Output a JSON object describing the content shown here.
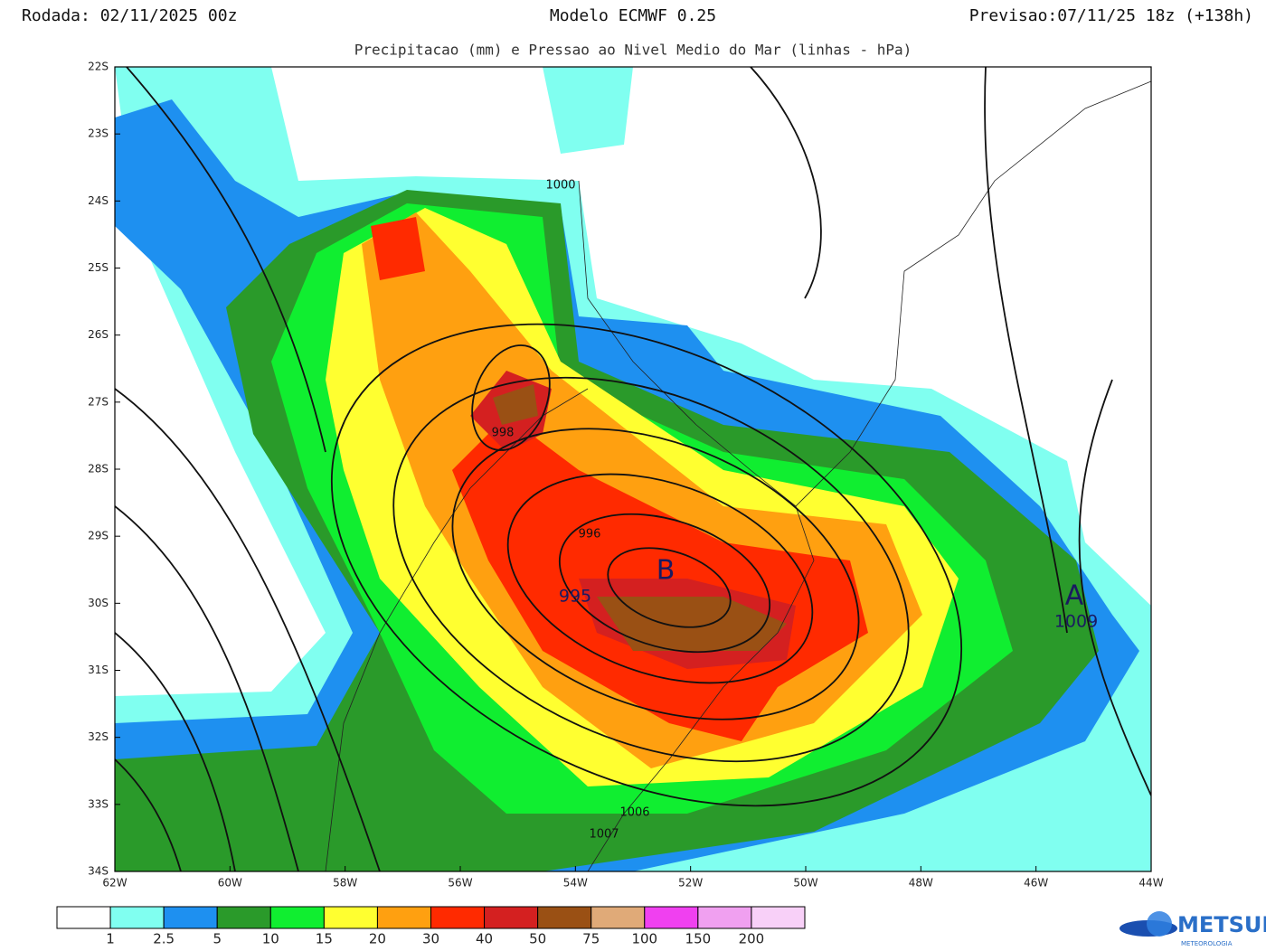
{
  "header": {
    "run": "Rodada: 02/11/2025 00z",
    "model": "Modelo ECMWF 0.25",
    "forecast": "Previsao:07/11/25 18z (+138h)",
    "subtitle": "Precipitacao (mm) e Pressao ao Nivel Medio do Mar (linhas - hPa)"
  },
  "map": {
    "lat_labels": [
      "22S",
      "23S",
      "24S",
      "25S",
      "26S",
      "27S",
      "28S",
      "29S",
      "30S",
      "31S",
      "32S",
      "33S",
      "34S"
    ],
    "lon_labels": [
      "62W",
      "60W",
      "58W",
      "56W",
      "54W",
      "52W",
      "50W",
      "48W",
      "46W",
      "44W"
    ],
    "centers": [
      {
        "letter": "B",
        "pressure": "995"
      },
      {
        "letter": "A",
        "pressure": "1009"
      }
    ],
    "contour_labels": [
      "1000",
      "998",
      "996",
      "1006",
      "1007"
    ]
  },
  "colorbar": {
    "colors": [
      "#ffffff",
      "#80fff0",
      "#1e90f0",
      "#2a9a2a",
      "#10ee30",
      "#ffff30",
      "#ffa010",
      "#ff2a00",
      "#d42020",
      "#9a5014",
      "#e0aa78",
      "#f040f0",
      "#f0a0f0",
      "#f8d0f8"
    ],
    "labels": [
      "1",
      "2.5",
      "5",
      "10",
      "15",
      "20",
      "30",
      "40",
      "50",
      "75",
      "100",
      "150",
      "200"
    ]
  },
  "logo": {
    "name": "METSUL",
    "tagline": "METEOROLOGIA"
  }
}
